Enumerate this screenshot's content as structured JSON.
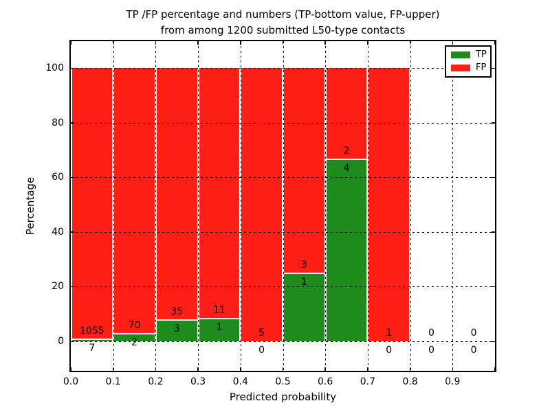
{
  "title": {
    "line1": "TP /FP percentage and numbers (TP-bottom value, FP-upper)",
    "line2": "from among 1200 submitted L50-type contacts"
  },
  "legend": {
    "items": [
      {
        "label": "TP",
        "color": "#1f8b1f"
      },
      {
        "label": "FP",
        "color": "#fd1f16"
      }
    ]
  },
  "chart_data": {
    "type": "bar",
    "stacked": true,
    "normalized": "each bin scaled to 100%",
    "title": "TP /FP percentage and numbers (TP-bottom value, FP-upper) from among 1200 submitted L50-type contacts",
    "xlabel": "Predicted probability",
    "ylabel": "Percentage",
    "total_contacts": 1200,
    "categories": [
      "0.0-0.1",
      "0.1-0.2",
      "0.2-0.3",
      "0.3-0.4",
      "0.4-0.5",
      "0.5-0.6",
      "0.6-0.7",
      "0.7-0.8",
      "0.8-0.9",
      "0.9-1.0"
    ],
    "series": [
      {
        "name": "TP",
        "color": "#1f8b1f",
        "counts": [
          7,
          2,
          3,
          1,
          0,
          1,
          4,
          0,
          0,
          0
        ]
      },
      {
        "name": "FP",
        "color": "#fd1f16",
        "counts": [
          1055,
          70,
          35,
          11,
          5,
          3,
          2,
          1,
          0,
          0
        ]
      }
    ],
    "x_tick_labels": [
      "0.0",
      "0.1",
      "0.2",
      "0.3",
      "0.4",
      "0.5",
      "0.6",
      "0.7",
      "0.8",
      "0.9"
    ],
    "y_tick_values": [
      0,
      20,
      40,
      60,
      80,
      100
    ],
    "y_tick_labels": [
      "0",
      "20",
      "40",
      "60",
      "80",
      "100"
    ],
    "xlim": [
      0.0,
      1.0
    ],
    "ylim": [
      0,
      100
    ],
    "grid": "dotted-black-both-axes",
    "legend_position": "upper right",
    "bar_edge_color": "#ffffff"
  }
}
